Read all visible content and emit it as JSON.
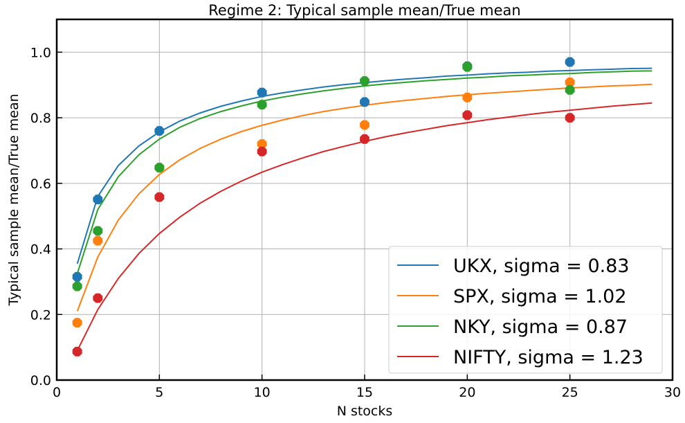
{
  "chart_data": {
    "type": "scatter",
    "title": "Regime 2: Typical sample mean/True mean",
    "xlabel": "N stocks",
    "ylabel": "Typical sample mean/True mean",
    "xlim": [
      0,
      30
    ],
    "ylim": [
      0,
      1.1
    ],
    "xticks": [
      0,
      5,
      10,
      15,
      20,
      25,
      30
    ],
    "yticks": [
      0.0,
      0.2,
      0.4,
      0.6,
      0.8,
      1.0
    ],
    "xtick_labels": [
      "0",
      "5",
      "10",
      "15",
      "20",
      "25",
      "30"
    ],
    "ytick_labels": [
      "0.0",
      "0.2",
      "0.4",
      "0.6",
      "0.8",
      "1.0"
    ],
    "grid": true,
    "legend_position": "bottom-right",
    "series": [
      {
        "name": "UKX, sigma = 0.83",
        "color": "#1f77b4",
        "points_x": [
          1,
          2,
          5,
          10,
          15,
          20,
          25
        ],
        "points_y": [
          0.315,
          0.551,
          0.76,
          0.877,
          0.848,
          0.957,
          0.97
        ],
        "line_x": [
          1,
          2,
          3,
          4,
          5,
          6,
          7,
          8,
          9,
          10,
          11,
          12,
          13,
          14,
          15,
          16,
          17,
          18,
          19,
          20,
          21,
          22,
          23,
          24,
          25,
          26,
          27,
          28,
          29
        ],
        "line_y": [
          0.355,
          0.56,
          0.654,
          0.714,
          0.757,
          0.79,
          0.815,
          0.835,
          0.851,
          0.865,
          0.876,
          0.885,
          0.894,
          0.901,
          0.907,
          0.913,
          0.918,
          0.922,
          0.927,
          0.93,
          0.934,
          0.937,
          0.939,
          0.942,
          0.944,
          0.946,
          0.948,
          0.95,
          0.951
        ]
      },
      {
        "name": "SPX, sigma = 1.02",
        "color": "#ff7f0e",
        "points_x": [
          1,
          2,
          5,
          10,
          15,
          20,
          25
        ],
        "points_y": [
          0.175,
          0.425,
          0.648,
          0.72,
          0.778,
          0.862,
          0.908
        ],
        "line_x": [
          1,
          2,
          3,
          4,
          5,
          6,
          7,
          8,
          9,
          10,
          11,
          12,
          13,
          14,
          15,
          16,
          17,
          18,
          19,
          20,
          21,
          22,
          23,
          24,
          25,
          26,
          27,
          28,
          29
        ],
        "line_y": [
          0.21,
          0.375,
          0.488,
          0.568,
          0.627,
          0.672,
          0.707,
          0.735,
          0.758,
          0.777,
          0.793,
          0.807,
          0.819,
          0.829,
          0.838,
          0.846,
          0.853,
          0.859,
          0.865,
          0.87,
          0.875,
          0.879,
          0.883,
          0.887,
          0.891,
          0.894,
          0.897,
          0.899,
          0.902
        ]
      },
      {
        "name": "NKY, sigma = 0.87",
        "color": "#2ca02c",
        "points_x": [
          1,
          2,
          5,
          10,
          15,
          20,
          25
        ],
        "points_y": [
          0.286,
          0.455,
          0.648,
          0.84,
          0.912,
          0.955,
          0.885
        ],
        "line_x": [
          1,
          2,
          3,
          4,
          5,
          6,
          7,
          8,
          9,
          10,
          11,
          12,
          13,
          14,
          15,
          16,
          17,
          18,
          19,
          20,
          21,
          22,
          23,
          24,
          25,
          26,
          27,
          28,
          29
        ],
        "line_y": [
          0.325,
          0.52,
          0.62,
          0.687,
          0.735,
          0.771,
          0.798,
          0.819,
          0.836,
          0.851,
          0.863,
          0.873,
          0.882,
          0.89,
          0.897,
          0.903,
          0.908,
          0.913,
          0.917,
          0.921,
          0.924,
          0.928,
          0.93,
          0.933,
          0.935,
          0.938,
          0.94,
          0.942,
          0.943
        ]
      },
      {
        "name": "NIFTY, sigma = 1.23",
        "color": "#d62728",
        "points_x": [
          1,
          2,
          5,
          10,
          15,
          20,
          25
        ],
        "points_y": [
          0.087,
          0.25,
          0.558,
          0.697,
          0.735,
          0.808,
          0.8
        ],
        "line_x": [
          1,
          2,
          3,
          4,
          5,
          6,
          7,
          8,
          9,
          10,
          11,
          12,
          13,
          14,
          15,
          16,
          17,
          18,
          19,
          20,
          21,
          22,
          23,
          24,
          25,
          26,
          27,
          28,
          29
        ],
        "line_y": [
          0.09,
          0.215,
          0.31,
          0.386,
          0.447,
          0.497,
          0.54,
          0.576,
          0.607,
          0.634,
          0.657,
          0.678,
          0.697,
          0.713,
          0.728,
          0.742,
          0.754,
          0.765,
          0.776,
          0.785,
          0.794,
          0.802,
          0.81,
          0.817,
          0.823,
          0.829,
          0.835,
          0.84,
          0.845
        ]
      }
    ]
  }
}
